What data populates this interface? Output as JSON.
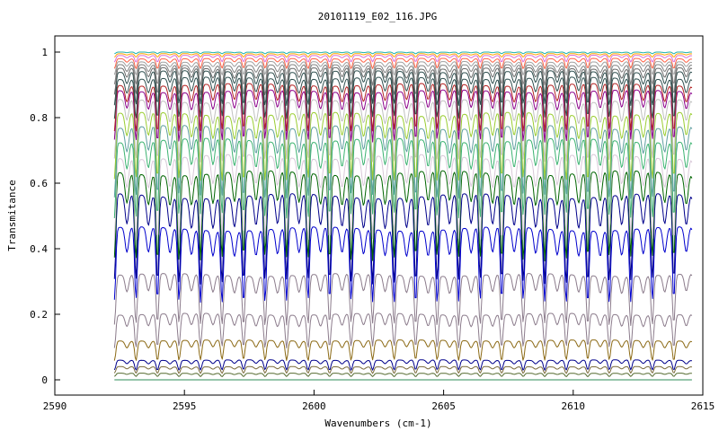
{
  "chart_data": {
    "type": "line",
    "title": "20101119_E02_116.JPG",
    "xlabel": "Wavenumbers (cm-1)",
    "ylabel": "Transmitance",
    "xlim": [
      2590,
      2615
    ],
    "ylim": [
      0,
      1
    ],
    "x_data_range": [
      2592.3,
      2614.6
    ],
    "x_ticks": [
      "2590",
      "2595",
      "2600",
      "2605",
      "2610",
      "2615"
    ],
    "y_ticks": [
      "0",
      "0.2",
      "0.4",
      "0.6",
      "0.8",
      "1"
    ],
    "grid": false,
    "legend": "none",
    "absorption_line_spacing_cm1": 0.83,
    "series": [
      {
        "baseline": 0.0,
        "line_depth": 0.0,
        "color": "#2e8b57"
      },
      {
        "baseline": 0.02,
        "line_depth": 0.01,
        "color": "#556b2f"
      },
      {
        "baseline": 0.04,
        "line_depth": 0.02,
        "color": "#7a6a3a"
      },
      {
        "baseline": 0.06,
        "line_depth": 0.03,
        "color": "#00008b"
      },
      {
        "baseline": 0.12,
        "line_depth": 0.06,
        "color": "#8b6914"
      },
      {
        "baseline": 0.2,
        "line_depth": 0.1,
        "color": "#8b7b8b"
      },
      {
        "baseline": 0.32,
        "line_depth": 0.15,
        "color": "#8b7b8b"
      },
      {
        "baseline": 0.46,
        "line_depth": 0.22,
        "color": "#0000cd"
      },
      {
        "baseline": 0.56,
        "line_depth": 0.26,
        "color": "#00008b"
      },
      {
        "baseline": 0.63,
        "line_depth": 0.26,
        "color": "#006400"
      },
      {
        "baseline": 0.68,
        "line_depth": 0.25,
        "color": "#d8c8d8"
      },
      {
        "baseline": 0.73,
        "line_depth": 0.23,
        "color": "#3cb371"
      },
      {
        "baseline": 0.77,
        "line_depth": 0.21,
        "color": "#5f9ea0"
      },
      {
        "baseline": 0.81,
        "line_depth": 0.2,
        "color": "#9acd32"
      },
      {
        "baseline": 0.85,
        "line_depth": 0.18,
        "color": "#c0c0c0"
      },
      {
        "baseline": 0.88,
        "line_depth": 0.15,
        "color": "#8b008b"
      },
      {
        "baseline": 0.9,
        "line_depth": 0.14,
        "color": "#b22222"
      },
      {
        "baseline": 0.92,
        "line_depth": 0.12,
        "color": "#2f4f4f"
      },
      {
        "baseline": 0.94,
        "line_depth": 0.1,
        "color": "#2f4f4f"
      },
      {
        "baseline": 0.95,
        "line_depth": 0.08,
        "color": "#696969"
      },
      {
        "baseline": 0.96,
        "line_depth": 0.06,
        "color": "#808080"
      },
      {
        "baseline": 0.97,
        "line_depth": 0.04,
        "color": "#a0a0a0"
      },
      {
        "baseline": 0.98,
        "line_depth": 0.03,
        "color": "#ff6347"
      },
      {
        "baseline": 0.99,
        "line_depth": 0.02,
        "color": "#da70d6"
      },
      {
        "baseline": 0.995,
        "line_depth": 0.01,
        "color": "#ffa500"
      },
      {
        "baseline": 1.0,
        "line_depth": 0.005,
        "color": "#20b2aa"
      }
    ]
  }
}
